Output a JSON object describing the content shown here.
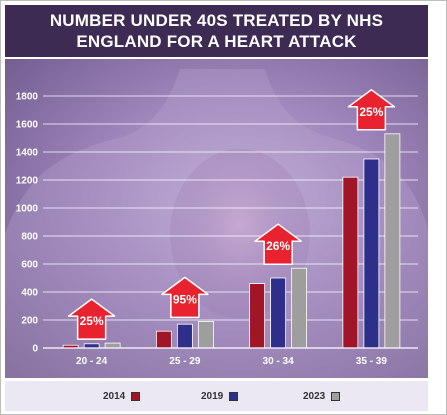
{
  "title": "NUMBER UNDER 40S TREATED BY NHS ENGLAND FOR A HEART ATTACK",
  "colors": {
    "title_bg": "#3d2b54",
    "y2014": "#a01528",
    "y2019": "#2e2f8a",
    "y2023": "#9e9e9e",
    "arrow": "#e8222e",
    "background": "#9a82b6",
    "legend_bg": "#ece8f3"
  },
  "chart_data": {
    "type": "bar",
    "title": "NUMBER UNDER 40S TREATED BY NHS ENGLAND FOR A HEART ATTACK",
    "xlabel": "",
    "ylabel": "",
    "categories": [
      "20 - 24",
      "25 - 29",
      "30 - 34",
      "35 - 39"
    ],
    "series": [
      {
        "name": "2014",
        "color": "#a01528",
        "values": [
          20,
          120,
          460,
          1220
        ]
      },
      {
        "name": "2019",
        "color": "#2e2f8a",
        "values": [
          30,
          170,
          500,
          1350
        ]
      },
      {
        "name": "2023",
        "color": "#9e9e9e",
        "values": [
          35,
          190,
          570,
          1530
        ]
      }
    ],
    "yticks": [
      0,
      200,
      400,
      600,
      800,
      1000,
      1200,
      1400,
      1600,
      1800
    ],
    "ytick_labels": [
      "0",
      "200",
      "400",
      "600",
      "800",
      "1000",
      "1200",
      "1400",
      "1600",
      "1800"
    ],
    "ylim": [
      0,
      1800
    ],
    "grid": true,
    "annotations": [
      "25%",
      "95%",
      "26%",
      "25%"
    ],
    "legend_position": "bottom"
  }
}
